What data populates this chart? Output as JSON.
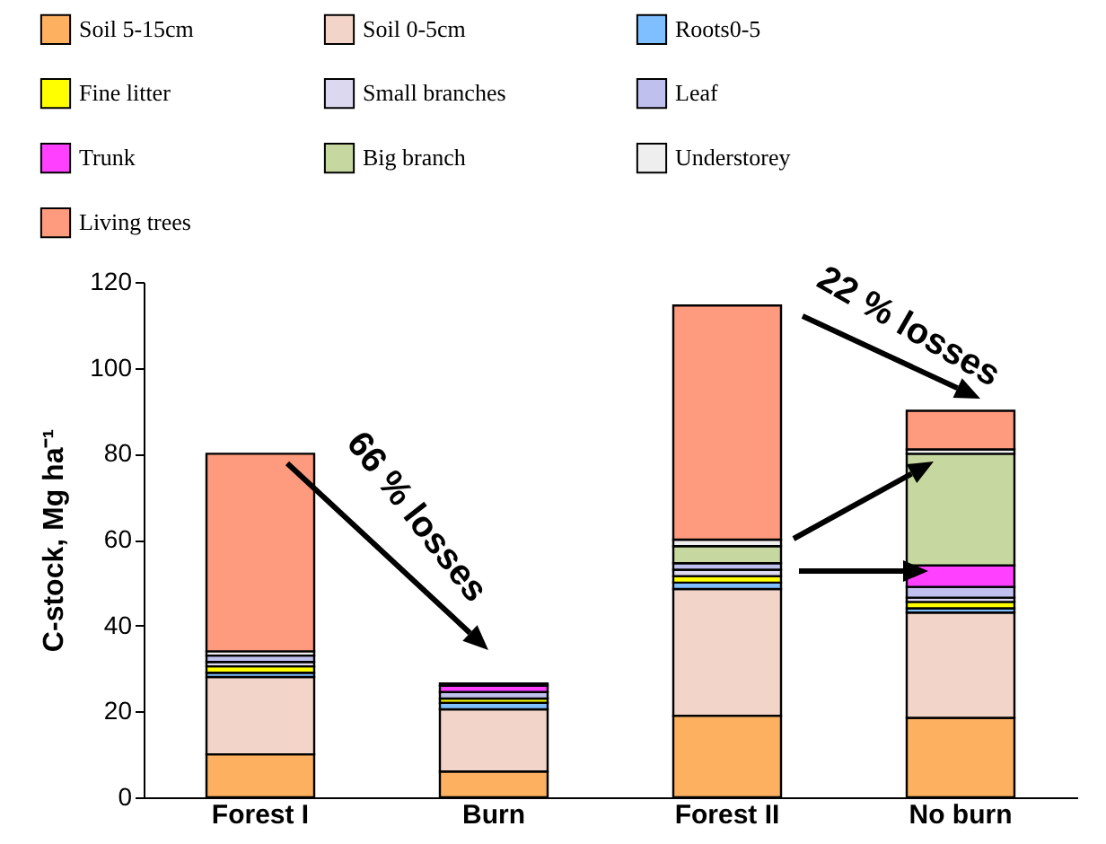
{
  "chart_data": {
    "type": "bar",
    "stacked": true,
    "ylabel": "C-stock, Mg ha⁻¹",
    "categories": [
      "Forest I",
      "Burn",
      "Forest II",
      "No burn"
    ],
    "ylim": [
      0,
      120
    ],
    "yticks": [
      0,
      20,
      40,
      60,
      80,
      100,
      120
    ],
    "legend": "top",
    "series": [
      {
        "name": "Soil 5-15cm",
        "color": "#fdb060",
        "values": [
          10,
          6,
          19,
          18.5
        ]
      },
      {
        "name": "Soil 0-5cm",
        "color": "#f2d5c8",
        "values": [
          18,
          14.5,
          29.5,
          24.5
        ]
      },
      {
        "name": "Roots0-5",
        "color": "#7fbfff",
        "values": [
          1,
          1.5,
          1.5,
          1
        ]
      },
      {
        "name": "Fine litter",
        "color": "#ffff00",
        "values": [
          1.5,
          1,
          1.5,
          1.5
        ]
      },
      {
        "name": "Small branches",
        "color": "#dcd8f0",
        "values": [
          1,
          null,
          1.5,
          1
        ]
      },
      {
        "name": "Leaf",
        "color": "#c0c0ee",
        "values": [
          1.5,
          1.5,
          1.5,
          2.5
        ]
      },
      {
        "name": "Trunk",
        "color": "#ff40ff",
        "values": [
          null,
          1.5,
          null,
          5
        ]
      },
      {
        "name": "Big branch",
        "color": "#c6d8a0",
        "values": [
          null,
          null,
          4,
          26
        ]
      },
      {
        "name": "Understorey",
        "color": "#eeeeee",
        "values": [
          1,
          null,
          1.5,
          1
        ]
      },
      {
        "name": "Living trees",
        "color": "#fe9a7e",
        "values": [
          46,
          0.5,
          54.5,
          9
        ]
      }
    ],
    "annotations": [
      "66 % losses",
      "22 % losses"
    ]
  }
}
